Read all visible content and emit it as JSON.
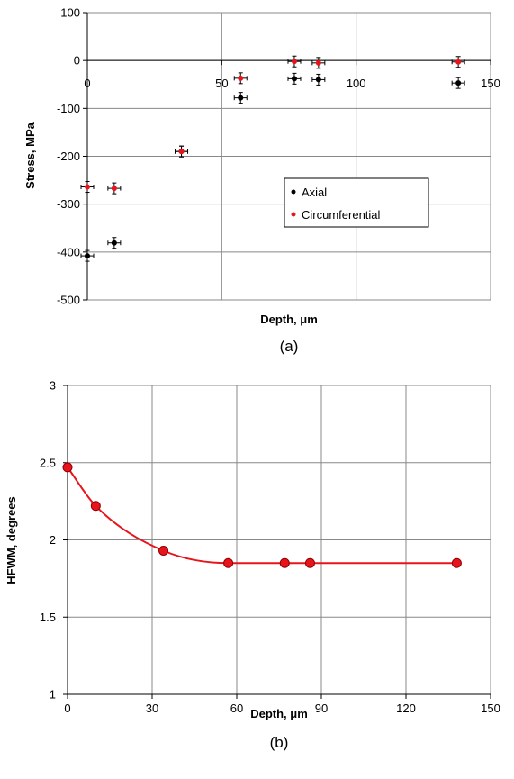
{
  "chart_data": [
    {
      "type": "scatter",
      "caption": "(a)",
      "xlabel": "Depth, μm",
      "ylabel": "Stress, MPa",
      "xlim": [
        0,
        150
      ],
      "ylim": [
        -500,
        100
      ],
      "x_ticks": [
        "0",
        "50",
        "100",
        "150"
      ],
      "y_ticks": [
        "100",
        "0",
        "-100",
        "-200",
        "-300",
        "-400",
        "-500"
      ],
      "grid": true,
      "legend_position": "lower-right",
      "error_bars": true,
      "series": [
        {
          "name": "Axial",
          "color": "#000000",
          "x": [
            0,
            10,
            35,
            57,
            77,
            86,
            138
          ],
          "y": [
            -408,
            -381,
            -190,
            -78,
            -38,
            -40,
            -47
          ]
        },
        {
          "name": "Circumferential",
          "color": "#e8141b",
          "x": [
            0,
            10,
            35,
            57,
            77,
            86,
            138
          ],
          "y": [
            -264,
            -267,
            -190,
            -37,
            -2,
            -5,
            -3
          ]
        }
      ]
    },
    {
      "type": "line",
      "caption": "(b)",
      "xlabel": "Depth, μm",
      "ylabel": "HFWM, degrees",
      "xlim": [
        0,
        150
      ],
      "ylim": [
        1,
        3
      ],
      "x_ticks": [
        "0",
        "30",
        "60",
        "90",
        "120",
        "150"
      ],
      "y_ticks": [
        "3",
        "2.5",
        "2",
        "1.5",
        "1"
      ],
      "grid": true,
      "smooth": true,
      "series": [
        {
          "color": "#e8141b",
          "x": [
            0,
            10,
            34,
            57,
            77,
            86,
            138
          ],
          "y": [
            2.47,
            2.22,
            1.93,
            1.85,
            1.85,
            1.85,
            1.85
          ]
        }
      ]
    }
  ]
}
